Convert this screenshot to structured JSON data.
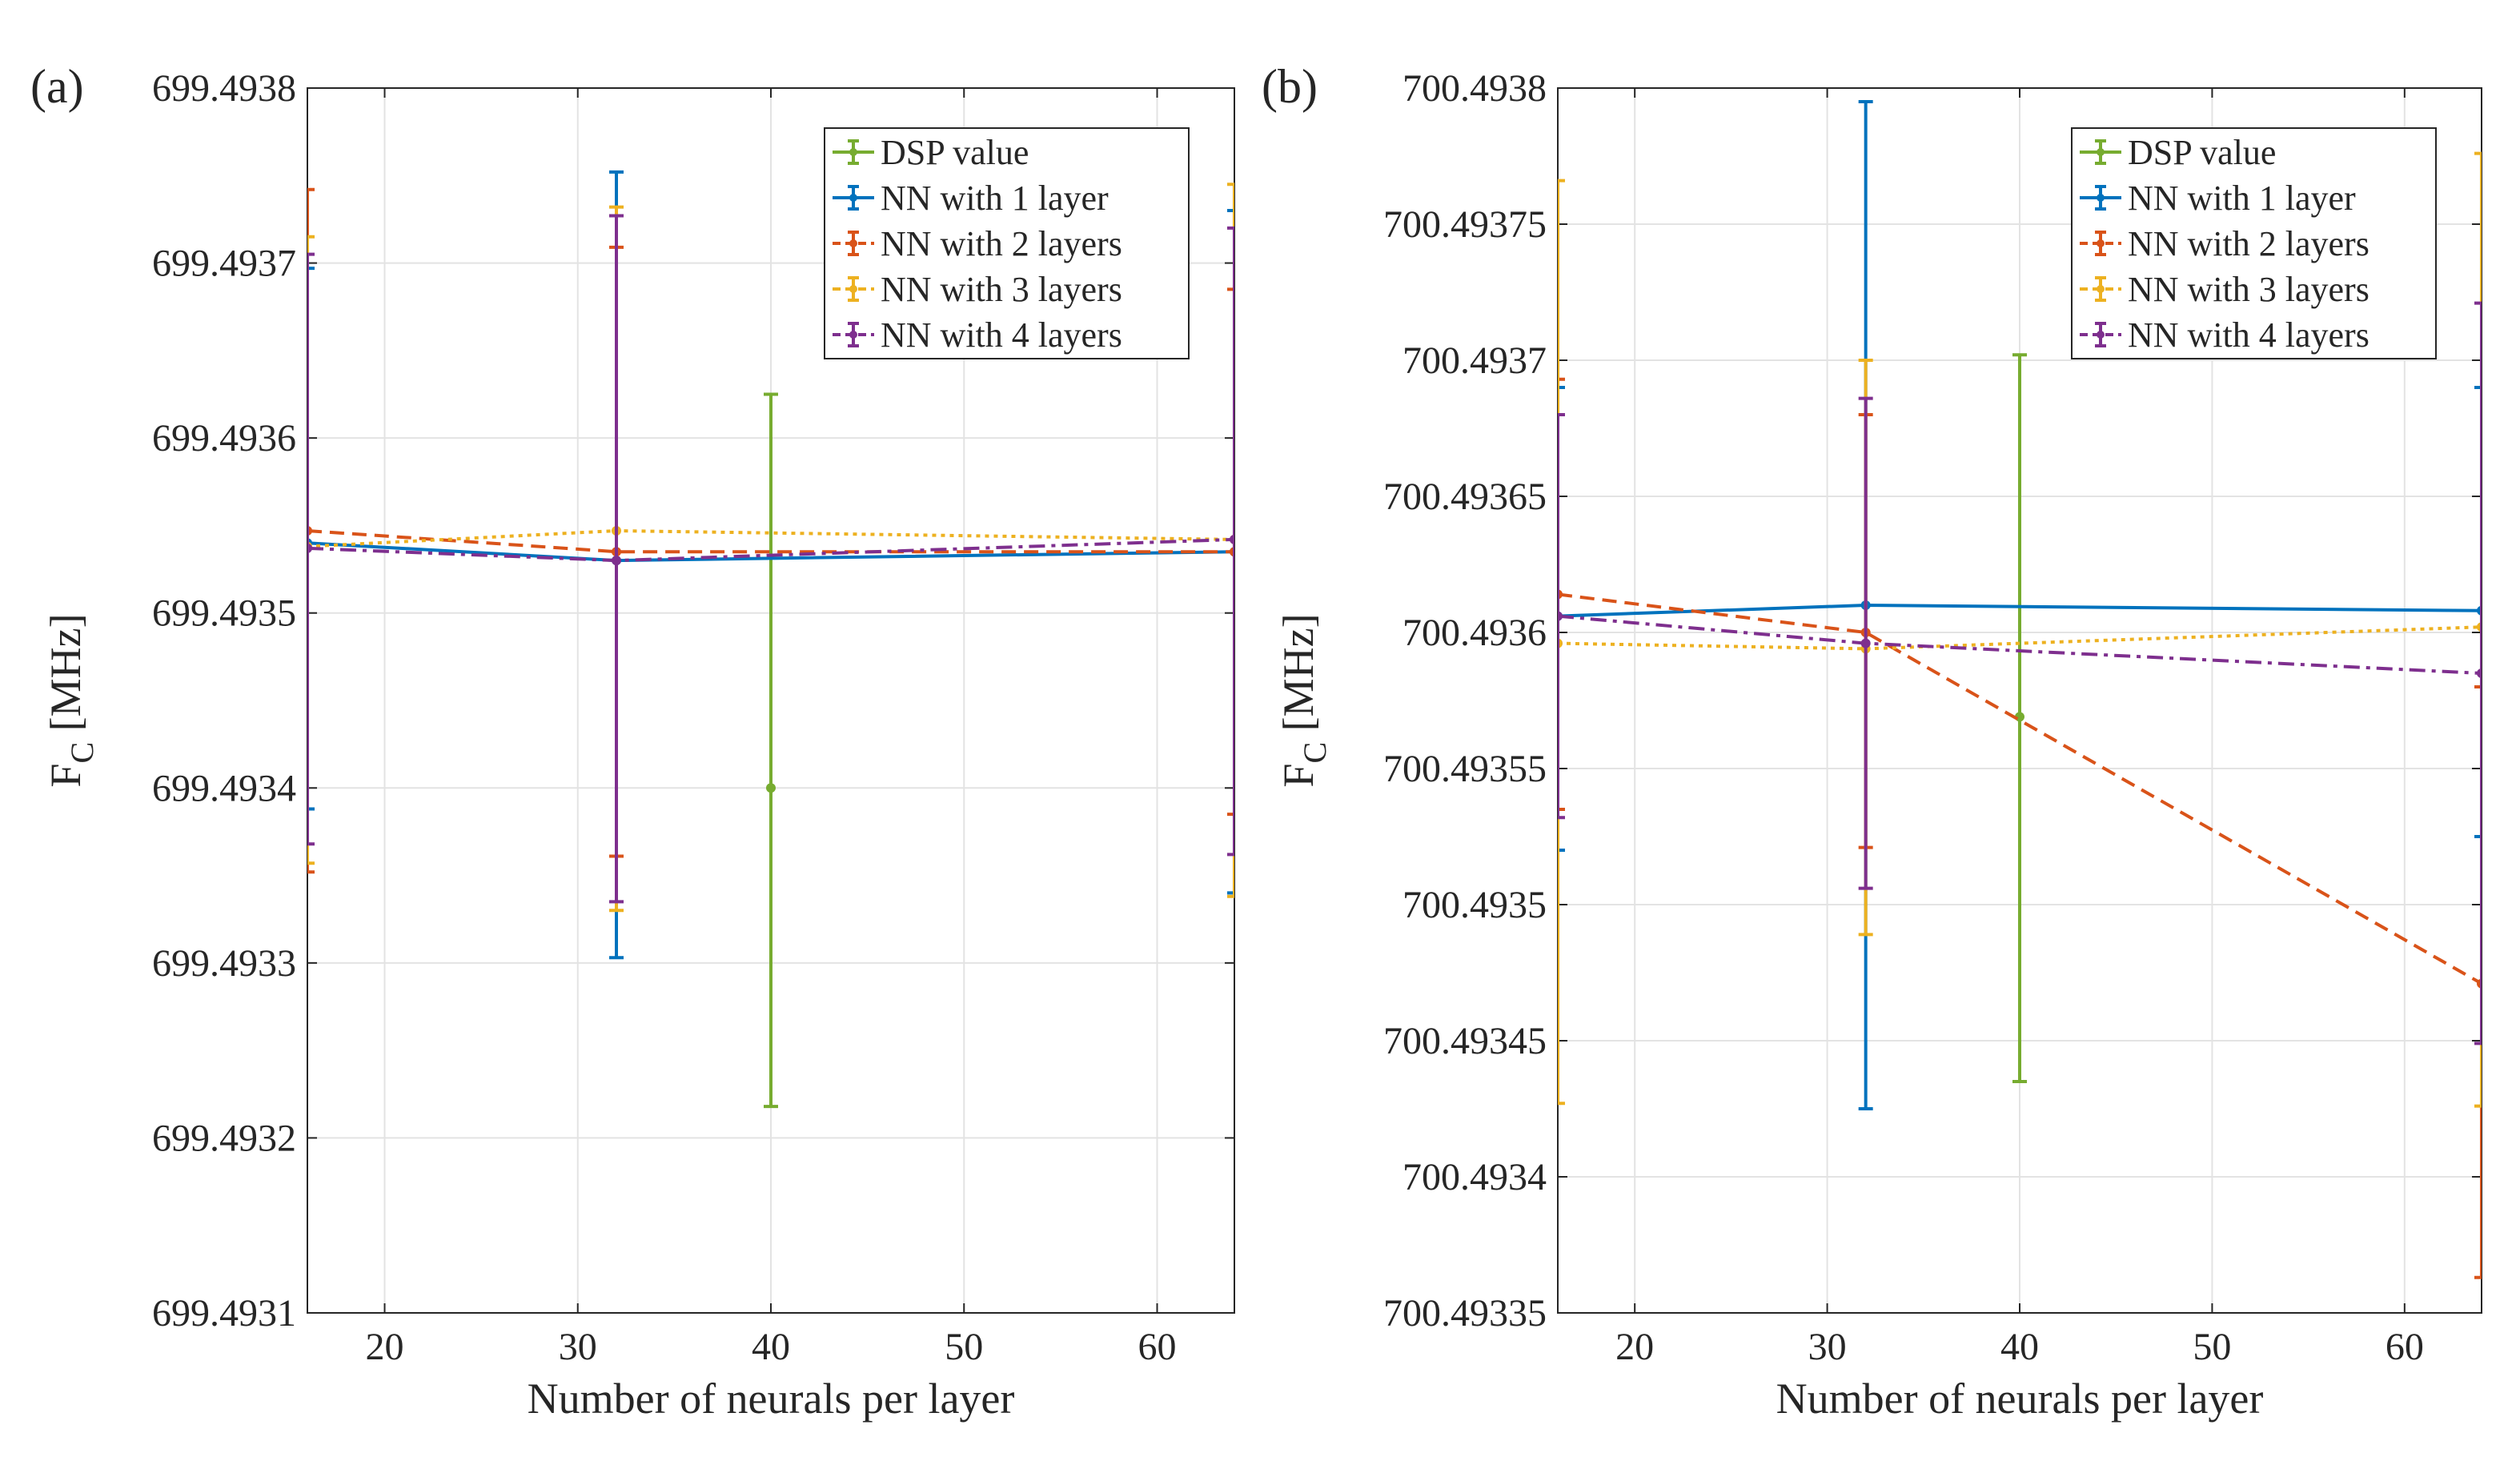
{
  "chart_data": [
    {
      "type": "line",
      "panel_label": "(a)",
      "xlabel": "Number of neurals per layer",
      "ylabel": "F",
      "ylabel_subscript": "C",
      "ylabel_unit": "[MHz]",
      "xlim": [
        16,
        64
      ],
      "ylim": [
        699.4931,
        699.4938
      ],
      "xticks": [
        20,
        30,
        40,
        50,
        60
      ],
      "yticks": [
        699.4931,
        699.4932,
        699.4933,
        699.4934,
        699.4935,
        699.4936,
        699.4937,
        699.4938
      ],
      "ytick_labels": [
        "699.4931",
        "699.4932",
        "699.4933",
        "699.4934",
        "699.4935",
        "699.4936",
        "699.4937",
        "699.4938"
      ],
      "grid": true,
      "legend_position": "top-right",
      "series": [
        {
          "name": "DSP value",
          "color": "#77AC30",
          "dash": "solid",
          "x": [
            40
          ],
          "y": [
            699.4934
          ],
          "err_low": [
            699.493218
          ],
          "err_high": [
            699.493625
          ]
        },
        {
          "name": "NN with 1 layer",
          "color": "#0072BD",
          "dash": "solid",
          "x": [
            16,
            32,
            64
          ],
          "y": [
            699.49354,
            699.49353,
            699.493535
          ],
          "err_low": [
            699.493388,
            699.493303,
            699.49334
          ],
          "err_high": [
            699.493697,
            699.493752,
            699.49373
          ]
        },
        {
          "name": "NN with 2 layers",
          "color": "#D95319",
          "dash": "dashed",
          "x": [
            16,
            32,
            64
          ],
          "y": [
            699.493547,
            699.493535,
            699.493535
          ],
          "err_low": [
            699.493352,
            699.493361,
            699.493385
          ],
          "err_high": [
            699.493742,
            699.493709,
            699.493685
          ]
        },
        {
          "name": "NN with 3 layers",
          "color": "#EDB120",
          "dash": "dotted",
          "x": [
            16,
            32,
            64
          ],
          "y": [
            699.493538,
            699.493547,
            699.493542
          ],
          "err_low": [
            699.493357,
            699.49333,
            699.493338
          ],
          "err_high": [
            699.493715,
            699.493732,
            699.493745
          ]
        },
        {
          "name": "NN with 4 layers",
          "color": "#7E2F8E",
          "dash": "dashdot",
          "x": [
            16,
            32,
            64
          ],
          "y": [
            699.493537,
            699.49353,
            699.493542
          ],
          "err_low": [
            699.493368,
            699.493335,
            699.493362
          ],
          "err_high": [
            699.493705,
            699.493727,
            699.49372
          ]
        }
      ]
    },
    {
      "type": "line",
      "panel_label": "(b)",
      "xlabel": "Number of neurals per layer",
      "ylabel": "F",
      "ylabel_subscript": "C",
      "ylabel_unit": "[MHz]",
      "xlim": [
        16,
        64
      ],
      "ylim": [
        700.49335,
        700.4938
      ],
      "xticks": [
        20,
        30,
        40,
        50,
        60
      ],
      "yticks": [
        700.49335,
        700.4934,
        700.49345,
        700.4935,
        700.49355,
        700.4936,
        700.49365,
        700.4937,
        700.49375,
        700.4938
      ],
      "ytick_labels": [
        "700.49335",
        "700.4934",
        "700.49345",
        "700.4935",
        "700.49355",
        "700.4936",
        "700.49365",
        "700.4937",
        "700.49375",
        "700.4938"
      ],
      "grid": true,
      "legend_position": "top-right",
      "series": [
        {
          "name": "DSP value",
          "color": "#77AC30",
          "dash": "solid",
          "x": [
            40
          ],
          "y": [
            700.493569
          ],
          "err_low": [
            700.493435
          ],
          "err_high": [
            700.493702
          ]
        },
        {
          "name": "NN with 1 layer",
          "color": "#0072BD",
          "dash": "solid",
          "x": [
            16,
            32,
            64
          ],
          "y": [
            700.493606,
            700.49361,
            700.493608
          ],
          "err_low": [
            700.49352,
            700.493425,
            700.493525
          ],
          "err_high": [
            700.49369,
            700.493795,
            700.49369
          ]
        },
        {
          "name": "NN with 2 layers",
          "color": "#D95319",
          "dash": "dashed",
          "x": [
            16,
            32,
            64
          ],
          "y": [
            700.493614,
            700.4936,
            700.493471
          ],
          "err_low": [
            700.493535,
            700.493521,
            700.493363
          ],
          "err_high": [
            700.493693,
            700.49368,
            700.49358
          ]
        },
        {
          "name": "NN with 3 layers",
          "color": "#EDB120",
          "dash": "dotted",
          "x": [
            16,
            32,
            64
          ],
          "y": [
            700.493596,
            700.493594,
            700.493602
          ],
          "err_low": [
            700.493427,
            700.493489,
            700.493426
          ],
          "err_high": [
            700.493766,
            700.4937,
            700.493776
          ]
        },
        {
          "name": "NN with 4 layers",
          "color": "#7E2F8E",
          "dash": "dashdot",
          "x": [
            16,
            32,
            64
          ],
          "y": [
            700.493606,
            700.493596,
            700.493585
          ],
          "err_low": [
            700.493532,
            700.493506,
            700.493449
          ],
          "err_high": [
            700.49368,
            700.493686,
            700.493721
          ]
        }
      ]
    }
  ]
}
